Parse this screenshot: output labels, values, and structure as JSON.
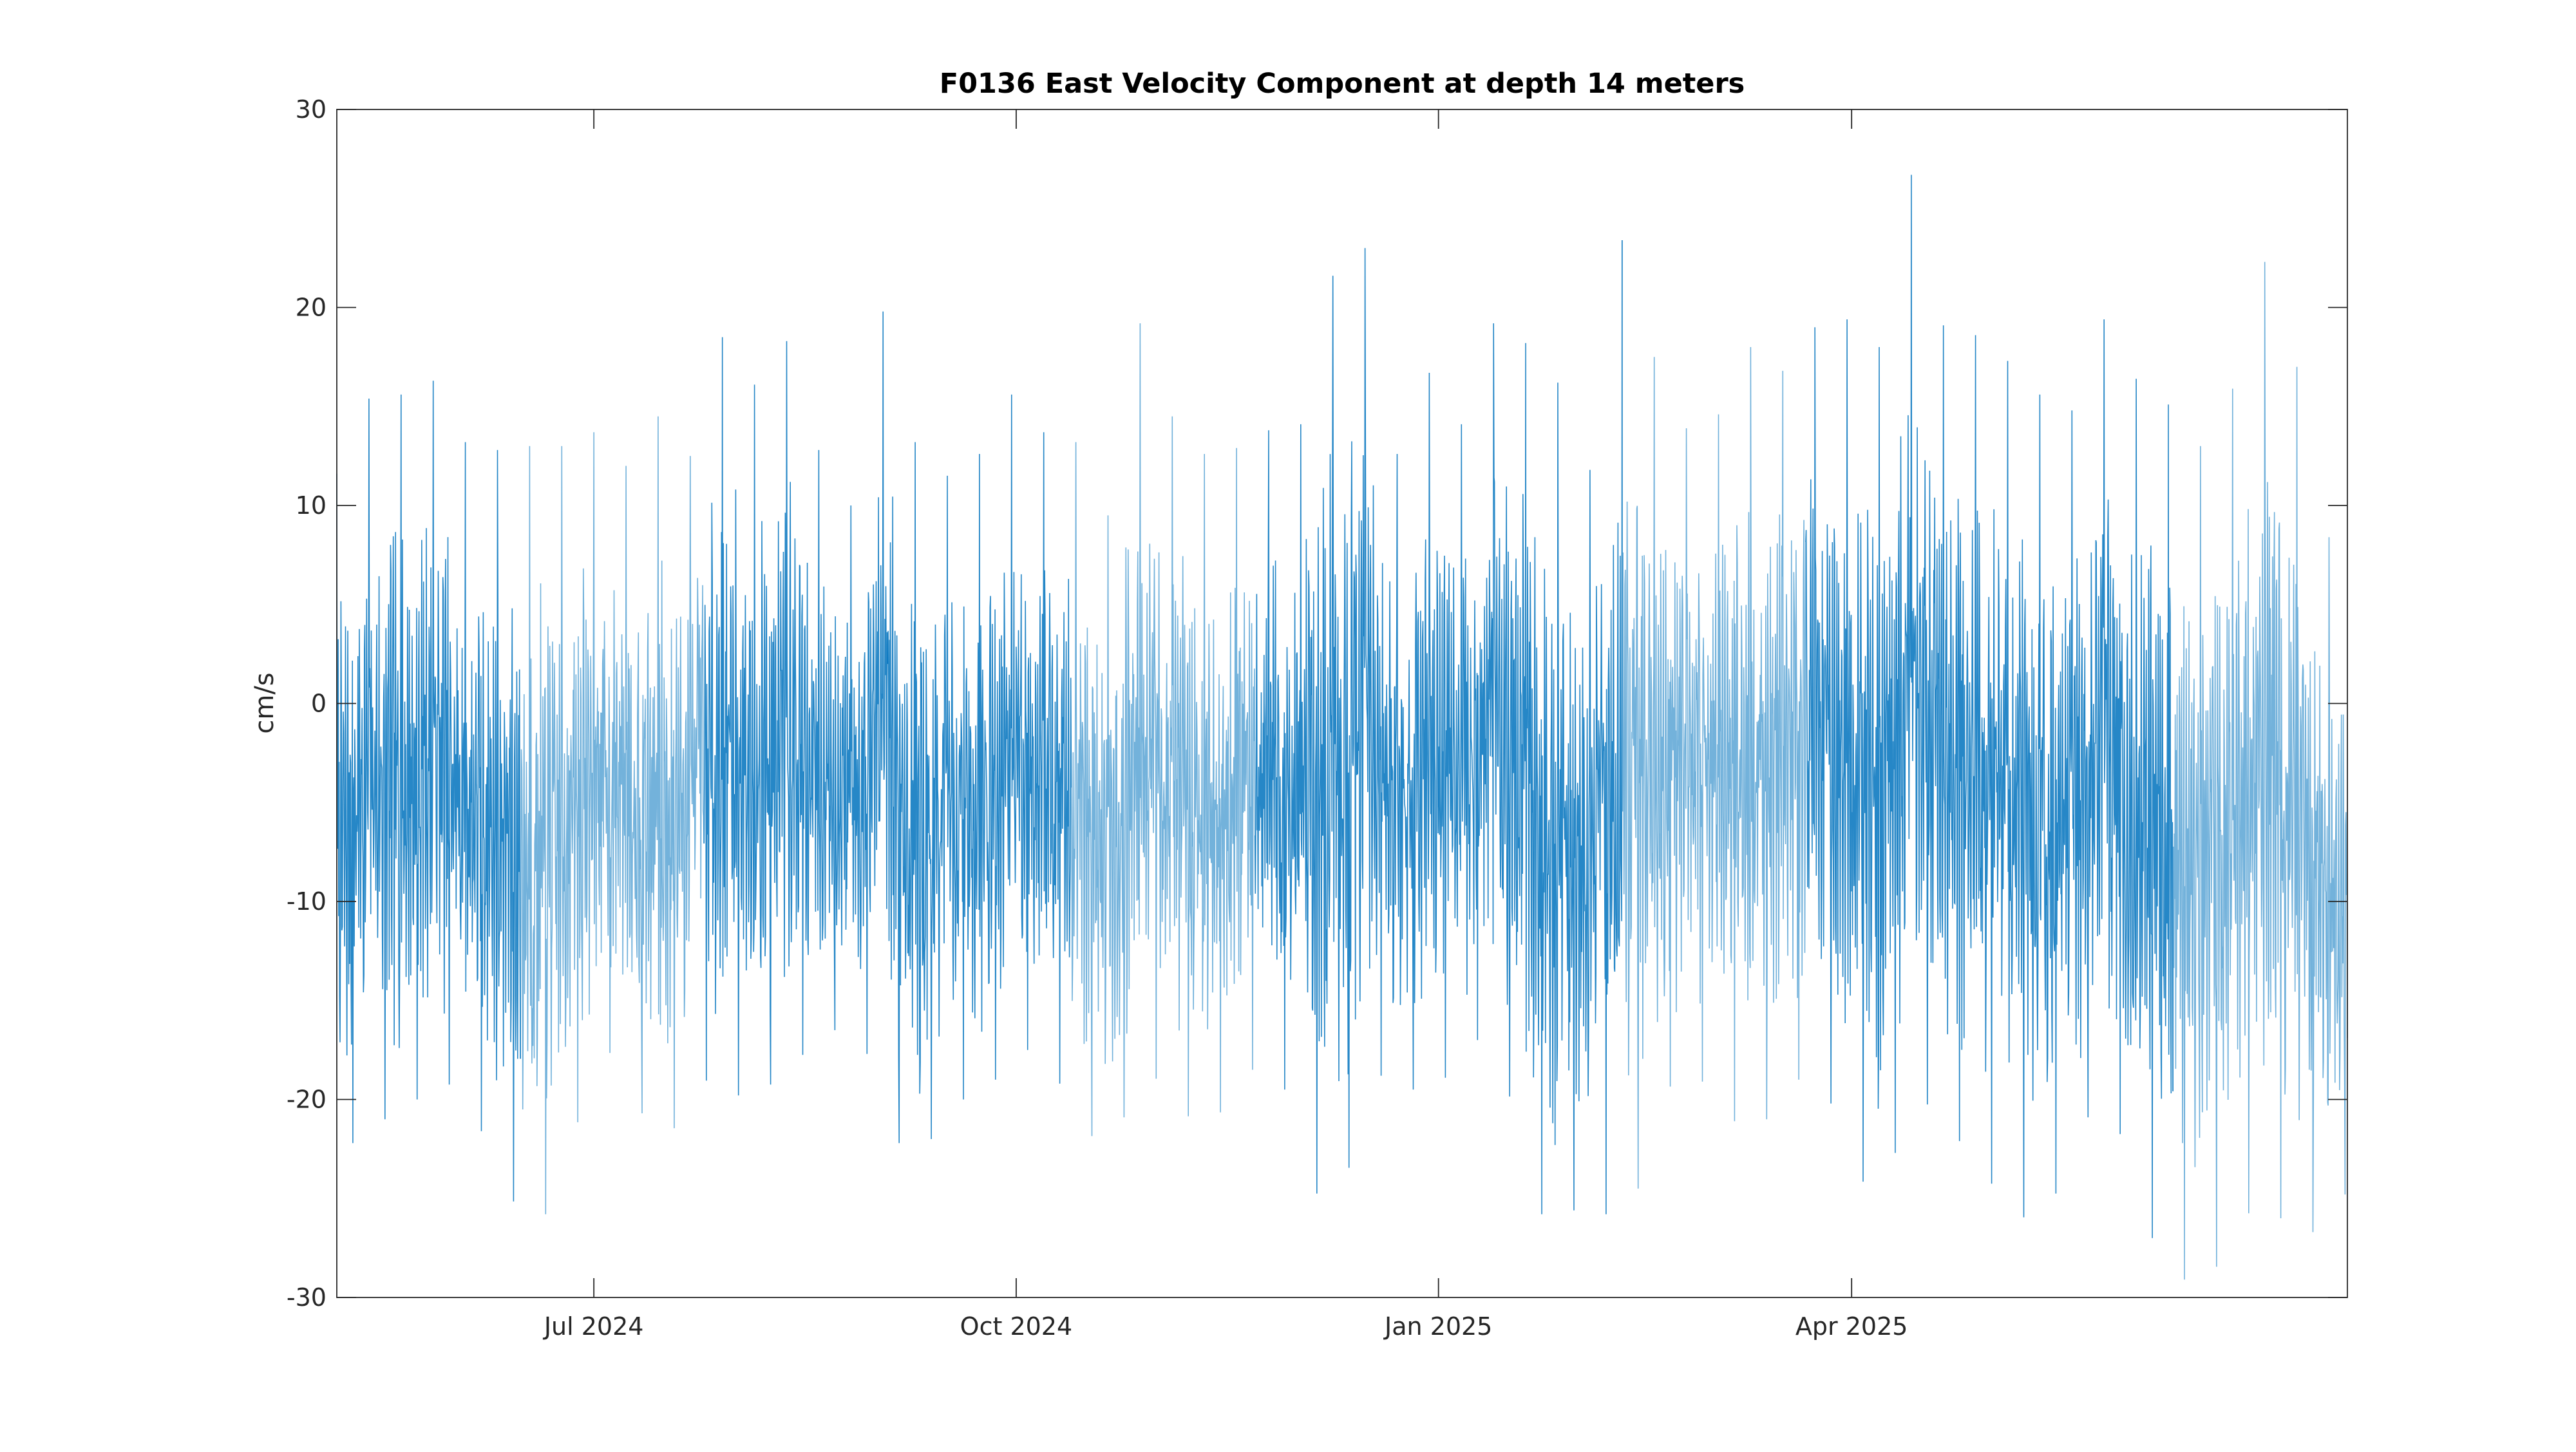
{
  "chart_data": {
    "type": "line",
    "title": "F0136 East Velocity Component at depth 14 meters",
    "xlabel": "",
    "ylabel": "cm/s",
    "ylim": [
      -30,
      30
    ],
    "yticks": [
      -30,
      -20,
      -10,
      0,
      10,
      20,
      30
    ],
    "ytick_labels": [
      "-30",
      "-20",
      "-10",
      "0",
      "10",
      "20",
      "30"
    ],
    "xlim": [
      "2024-05-06",
      "2025-07-18"
    ],
    "xticks": [
      "2024-07-01",
      "2024-10-01",
      "2025-01-01",
      "2025-04-01"
    ],
    "xtick_labels": [
      "Jul 2024",
      "Oct 2024",
      "Jan 2025",
      "Apr 2025"
    ],
    "grid": false,
    "legend": "none",
    "line_color": "#0072BD",
    "series": [
      {
        "x": [
          "2024-05-06",
          "2024-05-13",
          "2024-05-20",
          "2024-05-27",
          "2024-06-03",
          "2024-06-10",
          "2024-06-17",
          "2024-06-24",
          "2024-07-01",
          "2024-07-08",
          "2024-07-15",
          "2024-07-22",
          "2024-07-29",
          "2024-08-05",
          "2024-08-12",
          "2024-08-19",
          "2024-08-26",
          "2024-09-02",
          "2024-09-09",
          "2024-09-16",
          "2024-09-23",
          "2024-09-30",
          "2024-10-07",
          "2024-10-14",
          "2024-10-21",
          "2024-10-28",
          "2024-11-04",
          "2024-11-11",
          "2024-11-18",
          "2024-11-25",
          "2024-12-02",
          "2024-12-09",
          "2024-12-16",
          "2024-12-23",
          "2024-12-30",
          "2025-01-06",
          "2025-01-13",
          "2025-01-20",
          "2025-01-27",
          "2025-02-03",
          "2025-02-10",
          "2025-02-17",
          "2025-02-24",
          "2025-03-03",
          "2025-03-10",
          "2025-03-17",
          "2025-03-24",
          "2025-03-31",
          "2025-04-07",
          "2025-04-14",
          "2025-04-21",
          "2025-04-28",
          "2025-05-05",
          "2025-05-12",
          "2025-05-19",
          "2025-05-26",
          "2025-06-02",
          "2025-06-09",
          "2025-06-16",
          "2025-06-23",
          "2025-06-30",
          "2025-07-07",
          "2025-07-14"
        ],
        "min": [
          -24.4,
          -20,
          -22,
          -18,
          -20.5,
          -22.7,
          -27.6,
          -24,
          -18.3,
          -17,
          -24.4,
          -18.5,
          -19.6,
          -20,
          -18.5,
          -17,
          -16,
          -19.4,
          -25,
          -19,
          -21,
          -17,
          -18,
          -20.4,
          -23.3,
          -18.5,
          -19.4,
          -22.3,
          -19,
          -18,
          -21,
          -28.5,
          -18.4,
          -19.2,
          -19.8,
          -18,
          -16,
          -23.7,
          -27.9,
          -23.3,
          -28.3,
          -20.7,
          -18,
          -20.2,
          -22,
          -20,
          -18,
          -22.4,
          -25.9,
          -19.5,
          -21,
          -23.2,
          -25.3,
          -26.6,
          -22.9,
          -18.9,
          -24.6,
          -29.4,
          -28.8,
          -28.1,
          -23.4,
          -28.6,
          -24.8
        ],
        "max": [
          11.6,
          15.4,
          15.6,
          16.3,
          13.2,
          12.8,
          13,
          13,
          13.7,
          12,
          14.5,
          12.5,
          18.5,
          16.1,
          18.3,
          12.8,
          10,
          19.8,
          13.2,
          11.5,
          12.6,
          15.6,
          13.7,
          13.2,
          9.5,
          19.2,
          14.5,
          12.6,
          12.9,
          13.8,
          14.1,
          21.6,
          23,
          12.6,
          16.7,
          14.1,
          19.2,
          18.2,
          16.2,
          11.8,
          23.4,
          17.5,
          13.9,
          14.6,
          18,
          16.8,
          19,
          19.4,
          18,
          26.7,
          19.1,
          18.6,
          17.3,
          15.6,
          14.8,
          19.4,
          16.4,
          15.1,
          13,
          15.9,
          22.3,
          17,
          8.4
        ]
      }
    ]
  }
}
